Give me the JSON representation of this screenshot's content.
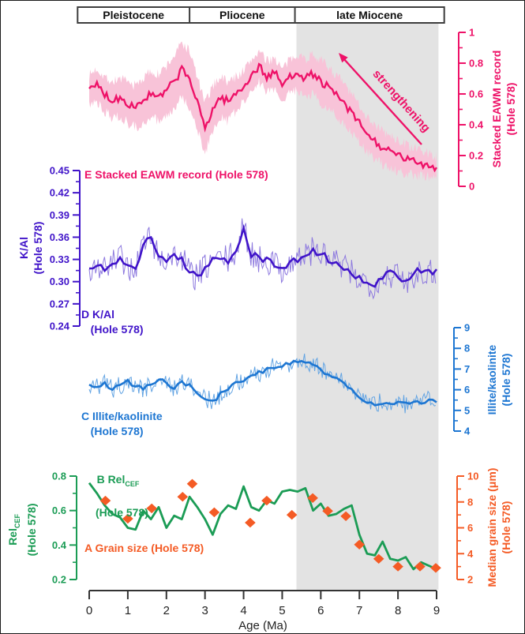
{
  "figure": {
    "background": "#ffffff",
    "shade_color": "#e3e3e3",
    "epoch_border_color": "#3d3d3d",
    "epoch_text_color": "#111111",
    "xaxis_color": "#333333"
  },
  "chart_data": {
    "type": "line",
    "x": {
      "label": "Age (Ma)",
      "min": 0,
      "max": 9,
      "ticks": [
        0,
        1,
        2,
        3,
        4,
        5,
        6,
        7,
        8,
        9
      ]
    },
    "epochs": {
      "labels": [
        "Pleistocene",
        "Pliocene",
        "late Miocene"
      ],
      "boundaries_ma": [
        -0.3,
        2.6,
        5.33,
        9.2
      ]
    },
    "shaded_interval_ma": [
      5.37,
      9.05
    ],
    "annotation": {
      "text": "strengthening"
    },
    "panels": [
      {
        "id": "E",
        "label": "E Stacked EAWM record (Hole 578)",
        "axis_title": [
          "Stacked EAWM record",
          "(Hole 578)"
        ],
        "side": "right",
        "min": 0,
        "max": 1,
        "tick_values": [
          0,
          0.2,
          0.4,
          0.6,
          0.8,
          1
        ],
        "tick_labels": [
          "0",
          "0.2",
          "0.4",
          "0.6",
          "0.8",
          "1"
        ],
        "color": "#ee1268",
        "band_color": "#f8c3d8",
        "x_start": 0,
        "x_step": 0.2,
        "values": [
          0.62,
          0.66,
          0.6,
          0.56,
          0.58,
          0.54,
          0.52,
          0.56,
          0.6,
          0.57,
          0.62,
          0.68,
          0.76,
          0.7,
          0.54,
          0.38,
          0.5,
          0.58,
          0.55,
          0.6,
          0.65,
          0.72,
          0.78,
          0.71,
          0.74,
          0.66,
          0.71,
          0.75,
          0.7,
          0.73,
          0.68,
          0.64,
          0.59,
          0.54,
          0.47,
          0.41,
          0.34,
          0.29,
          0.25,
          0.22,
          0.2,
          0.18,
          0.16,
          0.15,
          0.14,
          0.12
        ],
        "band_x": [
          0,
          1,
          2,
          2.6,
          3.2,
          4,
          5,
          6,
          7,
          8,
          9
        ],
        "band_halfwidth": [
          0.1,
          0.13,
          0.16,
          0.18,
          0.15,
          0.1,
          0.1,
          0.14,
          0.12,
          0.1,
          0.07
        ]
      },
      {
        "id": "D",
        "label": "D K/Al\n   (Hole 578)",
        "axis_title": [
          "K/Al",
          "(Hole 578)"
        ],
        "side": "left",
        "min": 0.24,
        "max": 0.45,
        "tick_values": [
          0.24,
          0.27,
          0.3,
          0.33,
          0.36,
          0.39,
          0.42,
          0.45
        ],
        "tick_labels": [
          "0.24",
          "0.27",
          "0.30",
          "0.33",
          "0.36",
          "0.39",
          "0.42",
          "0.45"
        ],
        "color": "#4014c9",
        "thin_color": "#8e7adf",
        "x_start": 0,
        "x_step": 0.2,
        "values": [
          0.315,
          0.322,
          0.318,
          0.324,
          0.33,
          0.32,
          0.318,
          0.352,
          0.36,
          0.332,
          0.33,
          0.335,
          0.331,
          0.312,
          0.306,
          0.318,
          0.33,
          0.331,
          0.329,
          0.342,
          0.372,
          0.338,
          0.33,
          0.33,
          0.324,
          0.318,
          0.323,
          0.331,
          0.336,
          0.342,
          0.337,
          0.331,
          0.326,
          0.318,
          0.31,
          0.304,
          0.3,
          0.296,
          0.306,
          0.311,
          0.306,
          0.3,
          0.31,
          0.316,
          0.312,
          0.316
        ]
      },
      {
        "id": "C",
        "label": "C Illite/kaolinite\n   (Hole 578)",
        "axis_title": [
          "Illite/kaolinite",
          "(Hole 578)"
        ],
        "side": "right",
        "min": 4,
        "max": 9,
        "tick_values": [
          4,
          5,
          6,
          7,
          8,
          9
        ],
        "tick_labels": [
          "4",
          "5",
          "6",
          "7",
          "8",
          "9"
        ],
        "color": "#1d76d2",
        "thin_color": "#63a4e3",
        "x_start": 0,
        "x_step": 0.2,
        "values": [
          6.2,
          6.1,
          6.3,
          6.0,
          6.2,
          6.4,
          6.2,
          6.0,
          6.3,
          6.5,
          6.3,
          6.1,
          6.4,
          6.2,
          5.9,
          5.6,
          5.4,
          5.8,
          6.1,
          6.3,
          6.5,
          6.6,
          6.8,
          7.0,
          7.1,
          7.2,
          7.3,
          7.3,
          7.4,
          7.2,
          7.0,
          6.7,
          6.6,
          6.3,
          6.0,
          5.7,
          5.4,
          5.3,
          5.4,
          5.3,
          5.4,
          5.3,
          5.5,
          5.4,
          5.5,
          5.4
        ]
      },
      {
        "id": "B",
        "label_pre": "B Rel",
        "label_sub": "CEF",
        "label_line2": "(Hole 578)",
        "axis_title_pre": "Rel",
        "axis_title_sub": "CEF",
        "axis_title_line2": "(Hole 578)",
        "side": "left",
        "min": 0.2,
        "max": 0.8,
        "tick_values": [
          0.2,
          0.4,
          0.6,
          0.8
        ],
        "tick_labels": [
          "0.2",
          "0.4",
          "0.6",
          "0.8"
        ],
        "color": "#1b9c55",
        "x_start": 0,
        "x_step": 0.2,
        "values": [
          0.76,
          0.7,
          0.63,
          0.58,
          0.56,
          0.5,
          0.49,
          0.6,
          0.55,
          0.62,
          0.5,
          0.57,
          0.55,
          0.68,
          0.62,
          0.55,
          0.46,
          0.58,
          0.63,
          0.61,
          0.74,
          0.62,
          0.6,
          0.66,
          0.64,
          0.71,
          0.72,
          0.71,
          0.73,
          0.6,
          0.64,
          0.57,
          0.58,
          0.61,
          0.63,
          0.46,
          0.35,
          0.34,
          0.42,
          0.32,
          0.31,
          0.33,
          0.26,
          0.3,
          0.28,
          0.26
        ]
      },
      {
        "id": "A",
        "label": "A Grain size (Hole 578)",
        "axis_title": [
          "Median grain size (μm)",
          "(Hole 578)"
        ],
        "side": "right",
        "min": 2,
        "max": 10,
        "tick_values": [
          2,
          4,
          6,
          8,
          10
        ],
        "tick_labels": [
          "2",
          "4",
          "6",
          "8",
          "10"
        ],
        "color": "#f45b25",
        "marker": "diamond",
        "points_x": [
          0.42,
          1.0,
          1.62,
          2.42,
          2.67,
          3.24,
          4.17,
          4.6,
          5.25,
          5.79,
          6.18,
          6.65,
          7.0,
          7.5,
          8.0,
          8.57,
          8.98
        ],
        "points_y": [
          8.1,
          6.7,
          7.5,
          8.4,
          9.4,
          7.2,
          6.4,
          8.1,
          7.0,
          8.3,
          7.3,
          6.9,
          4.7,
          3.6,
          3.0,
          3.0,
          2.9
        ]
      }
    ]
  }
}
